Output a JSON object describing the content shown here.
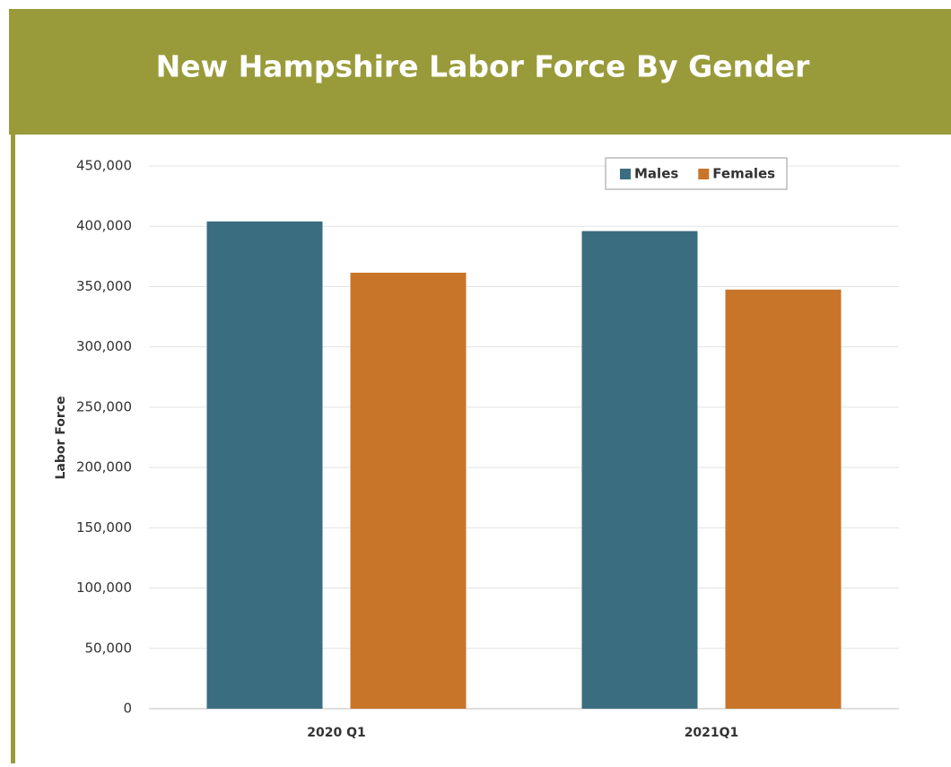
{
  "chart_data": {
    "type": "bar",
    "title": "New Hampshire Labor Force By Gender",
    "y_label": "Labor Force",
    "categories": [
      "2020 Q1",
      "2021Q1"
    ],
    "series": [
      {
        "name": "Males",
        "color": "#3b6d80",
        "values": [
          404000,
          396000
        ]
      },
      {
        "name": "Females",
        "color": "#c87529",
        "values": [
          361500,
          347500
        ]
      }
    ],
    "ylim": [
      0,
      450000
    ],
    "yticks": [
      0,
      {
        "value": 50000,
        "label": "50,000"
      },
      {
        "value": 100000,
        "label": "100,000"
      },
      {
        "value": 150000,
        "label": "150,000"
      },
      {
        "value": 200000,
        "label": "200,000"
      },
      {
        "value": 250000,
        "label": "250,000"
      },
      {
        "value": 300000,
        "label": "300,000"
      },
      {
        "value": 350000,
        "label": "350,000"
      },
      {
        "value": 400000,
        "label": "400,000"
      },
      {
        "value": 450000,
        "label": "450,000"
      }
    ],
    "grid": true,
    "legend": "top-right"
  }
}
